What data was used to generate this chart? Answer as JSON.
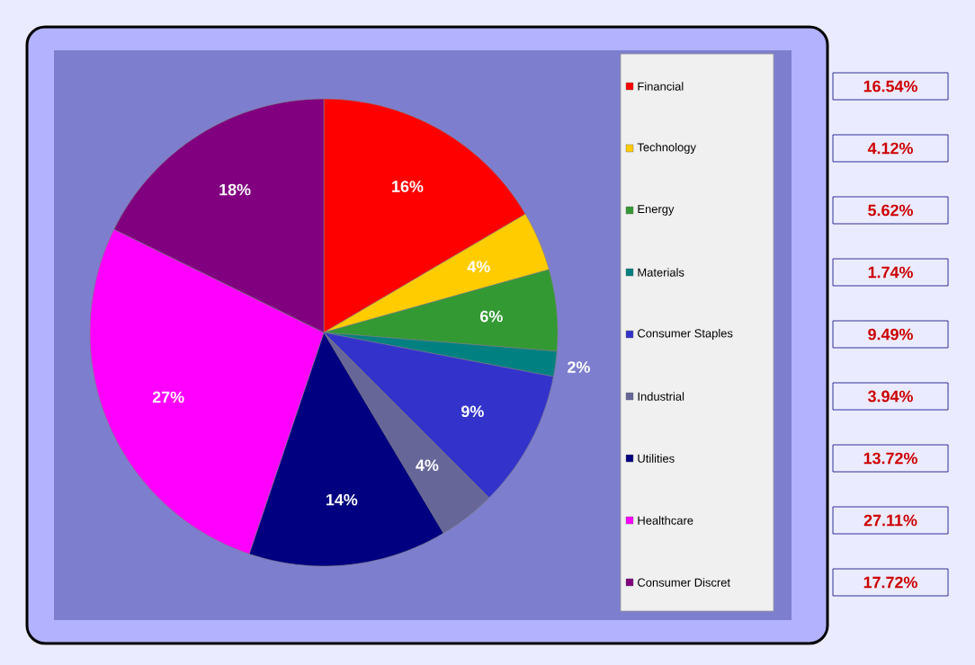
{
  "chart_data": {
    "type": "pie",
    "categories": [
      "Financial",
      "Technology",
      "Energy",
      "Materials",
      "Consumer Staples",
      "Industrial",
      "Utilities",
      "Healthcare",
      "Consumer Discret"
    ],
    "values": [
      16.54,
      4.12,
      5.62,
      1.74,
      9.49,
      3.94,
      13.72,
      27.11,
      17.72
    ],
    "colors": [
      "#ff0000",
      "#ffcc00",
      "#339933",
      "#008080",
      "#3333cc",
      "#666699",
      "#000080",
      "#ff00ff",
      "#800080"
    ],
    "value_labels": [
      "16.54%",
      "4.12%",
      "5.62%",
      "1.74%",
      "9.49%",
      "3.94%",
      "13.72%",
      "27.11%",
      "17.72%"
    ],
    "annotations": [
      "16%",
      "4%",
      "6%",
      "2%",
      "9%",
      "4%",
      "14%",
      "27%",
      "18%"
    ],
    "legend": "right"
  }
}
